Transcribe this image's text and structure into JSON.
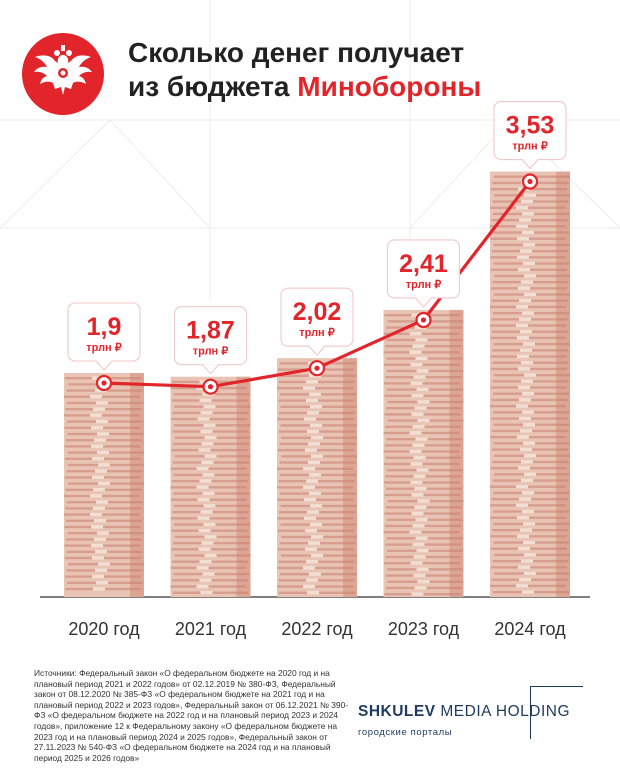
{
  "title": {
    "line1": "Сколько денег получает",
    "line2_prefix": "из бюджета ",
    "line2_accent": "Минобороны"
  },
  "colors": {
    "accent": "#e2242b",
    "text": "#222222",
    "brand": "#1f3a5f",
    "money": "#e7b9a8"
  },
  "logo_icon": "double-headed-eagle-emblem-icon",
  "chart_data": {
    "type": "line",
    "categories": [
      "2020 год",
      "2021 год",
      "2022 год",
      "2023 год",
      "2024 год"
    ],
    "values": [
      1.9,
      1.87,
      2.02,
      2.41,
      3.53
    ],
    "value_labels": [
      "1,9",
      "1,87",
      "2,02",
      "2,41",
      "3,53"
    ],
    "unit": "трлн ₽",
    "title": "Сколько денег получает из бюджета Минобороны",
    "xlabel": "",
    "ylabel": "",
    "grid": false,
    "legend": "none"
  },
  "sources": "Источники: Федеральный закон «О федеральном бюджете на 2020 год и на плановый период 2021 и 2022 годов» от 02.12.2019 № 380-ФЗ, Федеральный закон от 08.12.2020 № 385-ФЗ «О федеральном бюджете на 2021 год и на плановый период 2022 и 2023 годов», Федеральный закон от 06.12.2021 № 390-ФЗ «О федеральном бюджете на 2022 год и на плановый период 2023 и 2024 годов», приложение 12 к Федеральному закону «О федеральном бюджете на 2023 год и на плановый период 2024 и 2025 годов», Федеральный закон от 27.11.2023 № 540-ФЗ «О федеральном бюджете на 2024 год и на плановый период 2025 и 2026 годов»",
  "brand": {
    "name_bold": "SHKULEV",
    "name_rest": " MEDIA HOLDING",
    "subtitle": "городские порталы"
  }
}
